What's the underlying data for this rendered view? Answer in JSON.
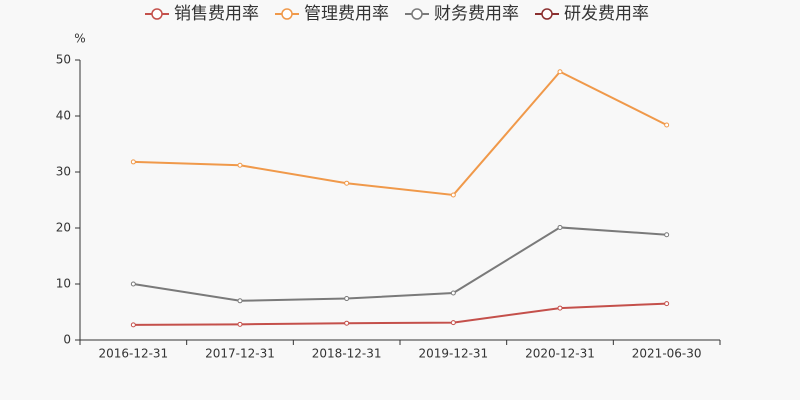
{
  "chart_data": {
    "type": "line",
    "y_label": "%",
    "categories": [
      "2016-12-31",
      "2017-12-31",
      "2018-12-31",
      "2019-12-31",
      "2020-12-31",
      "2021-06-30"
    ],
    "series": [
      {
        "name": "销售费用率",
        "color": "#c4504b",
        "values": [
          2.7,
          2.8,
          3.0,
          3.1,
          5.7,
          6.5
        ]
      },
      {
        "name": "管理费用率",
        "color": "#f0994a",
        "values": [
          31.8,
          31.2,
          28.0,
          25.9,
          47.9,
          38.4
        ]
      },
      {
        "name": "财务费用率",
        "color": "#7a7a7a",
        "values": [
          10.0,
          7.0,
          7.4,
          8.4,
          20.1,
          18.8
        ]
      },
      {
        "name": "研发费用率",
        "color": "#8b2f2f",
        "values": [
          null,
          null,
          null,
          null,
          null,
          null
        ]
      }
    ],
    "ylim": [
      0,
      50
    ],
    "yticks": [
      0,
      10,
      20,
      30,
      40,
      50
    ],
    "grid": false,
    "legend": "top"
  }
}
